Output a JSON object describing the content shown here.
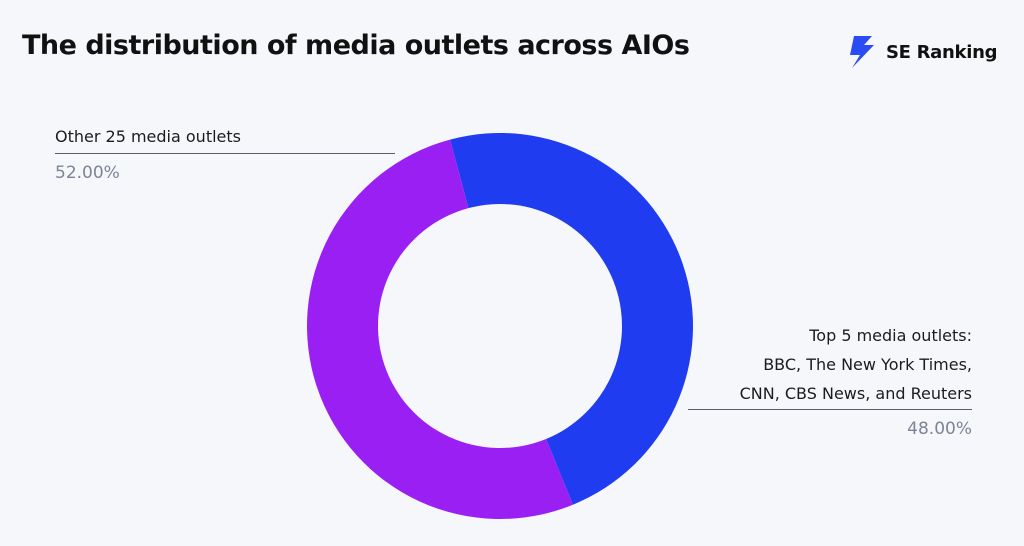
{
  "title": "The distribution of media outlets across AIOs",
  "brand": {
    "name": "SE Ranking",
    "icon": "lightning-bolt-icon"
  },
  "chart_data": {
    "type": "pie",
    "variant": "donut",
    "title": "The distribution of media outlets across AIOs",
    "slices": [
      {
        "label_lines": [
          "Top 5 media outlets:",
          "BBC, The New York Times,",
          "CNN, CBS News, and Reuters"
        ],
        "value": 48.0,
        "value_label": "48.00%",
        "color": "#1f3cf0"
      },
      {
        "label_lines": [
          "Other 25 media outlets"
        ],
        "value": 52.0,
        "value_label": "52.00%",
        "color": "#9a1ff2"
      }
    ],
    "start_angle_deg": -15,
    "legend": "none"
  }
}
